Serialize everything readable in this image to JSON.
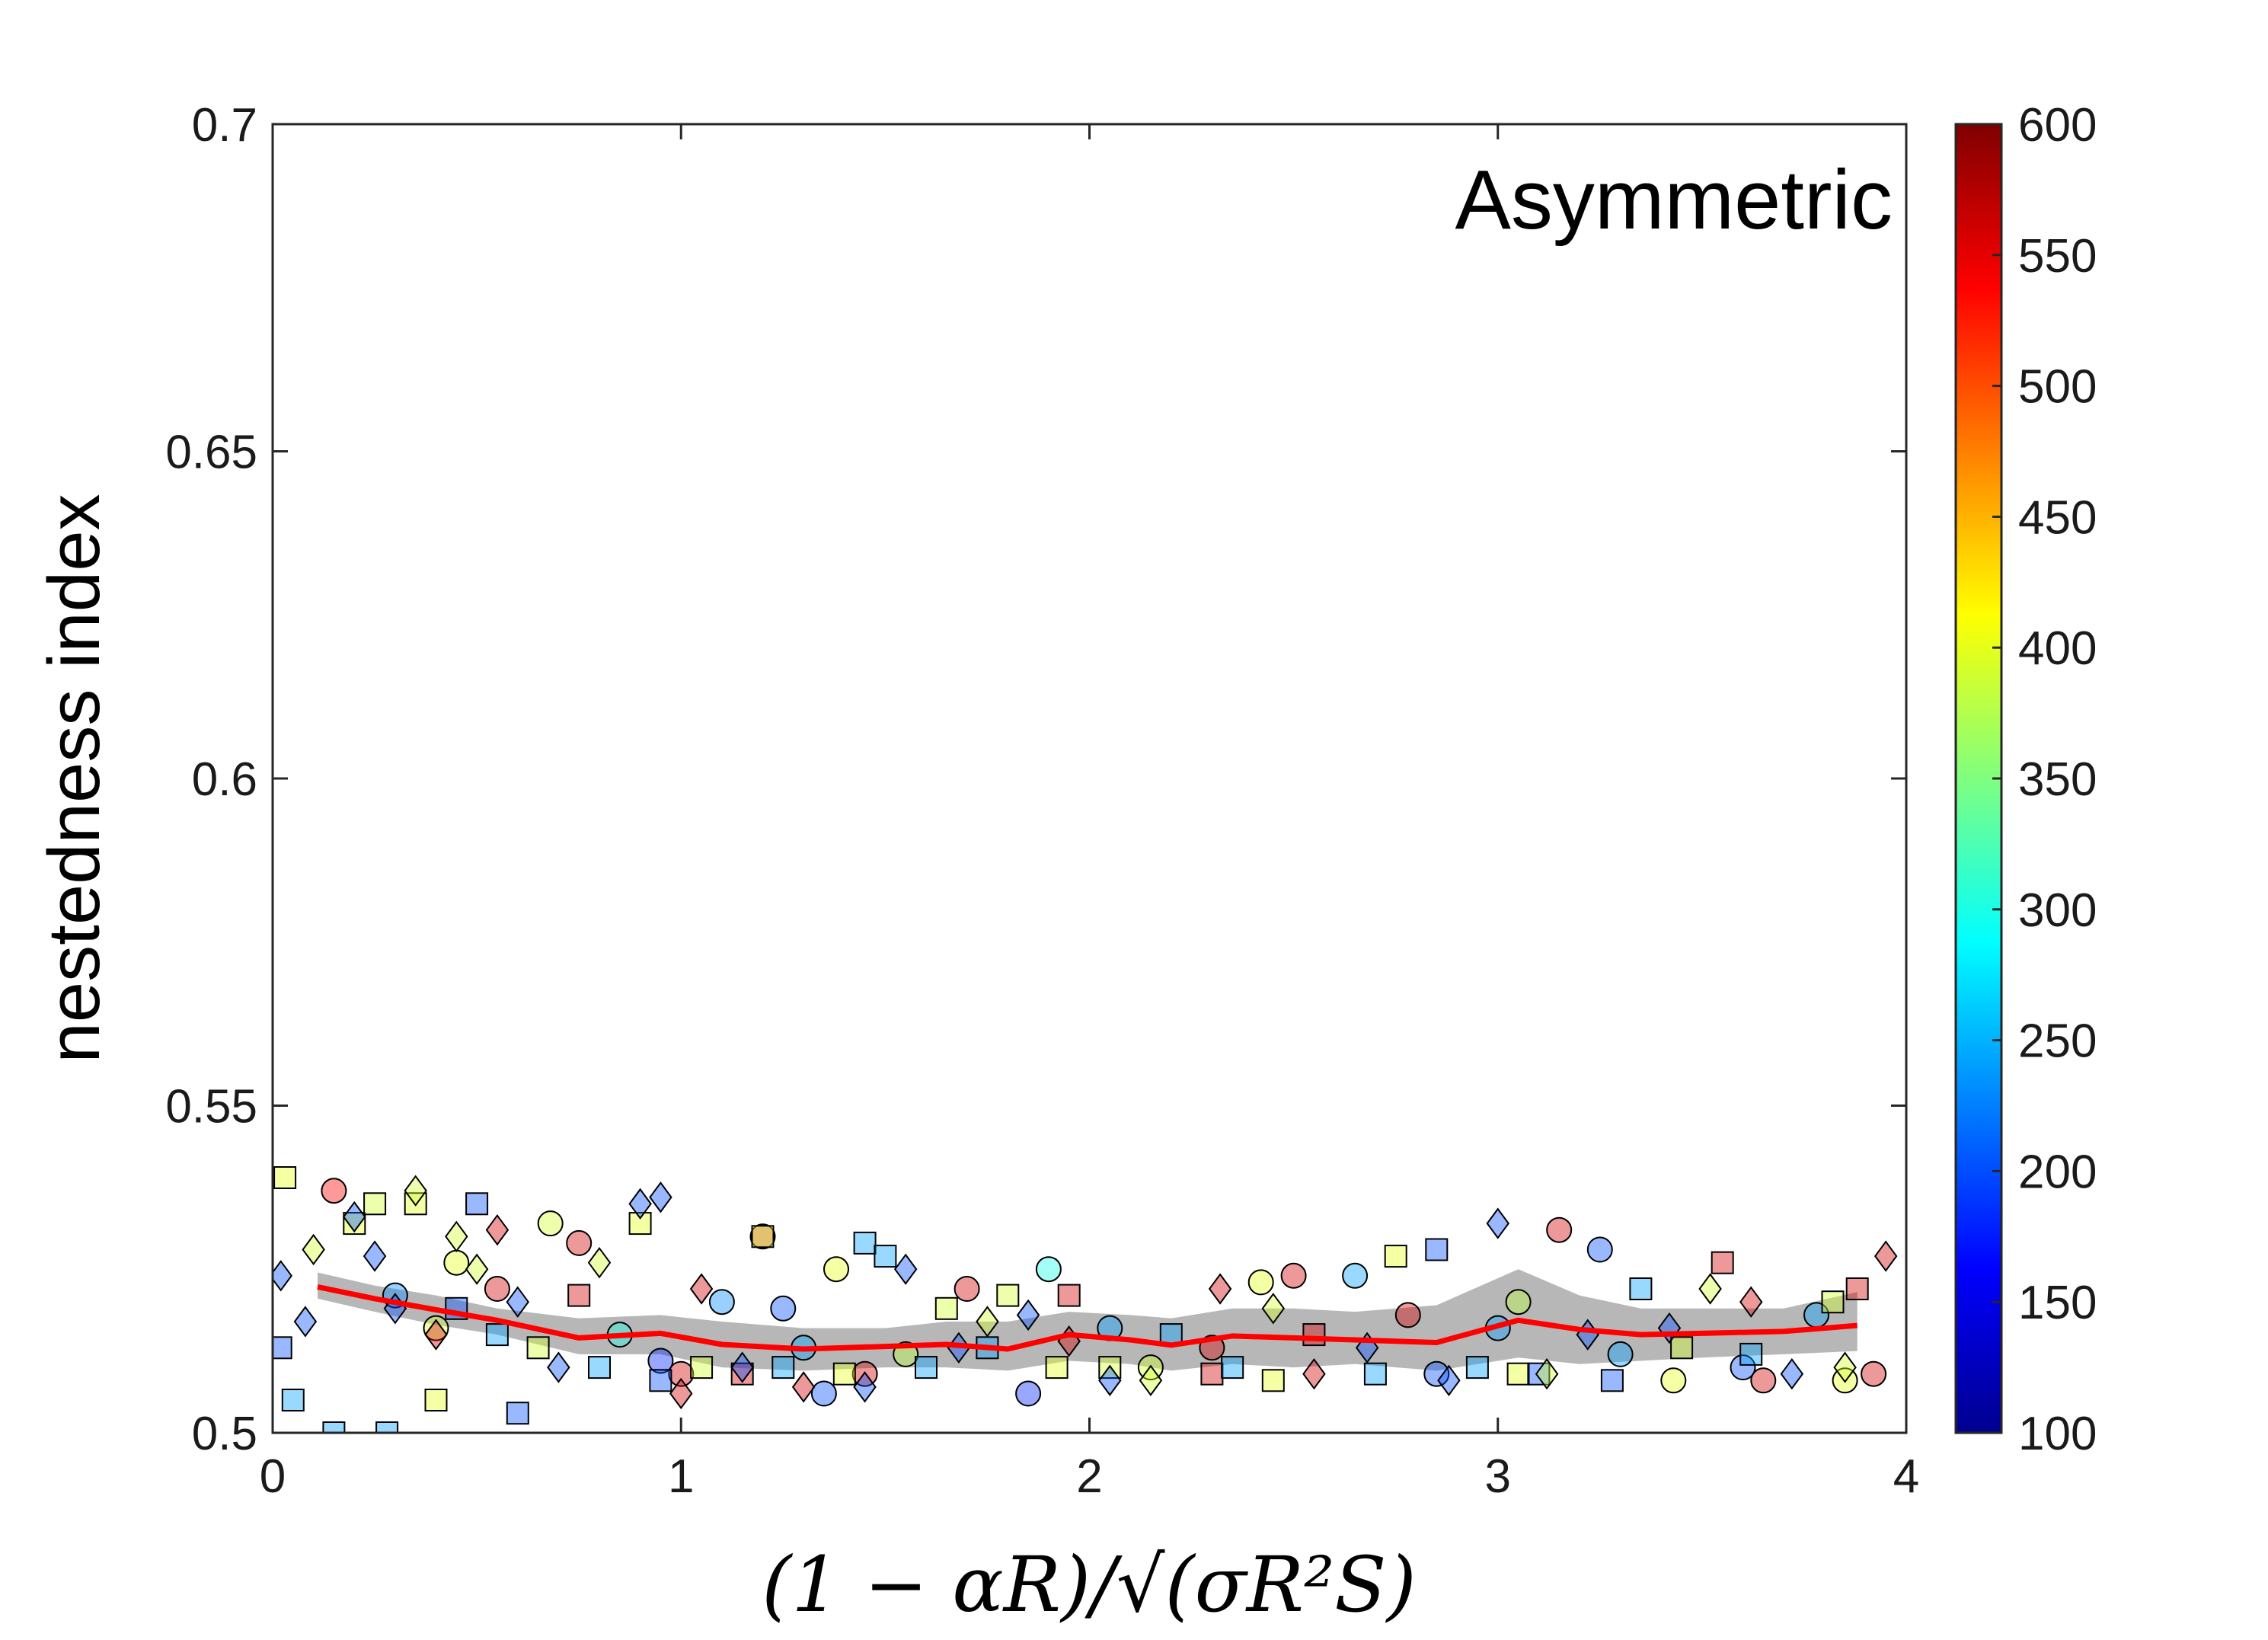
{
  "chart_data": {
    "type": "scatter",
    "title": "",
    "annotation": "Asymmetric",
    "xlabel": "(1 − αR)/√(σR²S)",
    "ylabel": "nestedness index",
    "xlim": [
      0,
      4
    ],
    "ylim": [
      0.5,
      0.7
    ],
    "xticks": [
      "0",
      "1",
      "2",
      "3",
      "4"
    ],
    "yticks": [
      "0.5",
      "0.55",
      "0.6",
      "0.65",
      "0.7"
    ],
    "colorbar": {
      "min": 100,
      "max": 600,
      "ticks": [
        "100",
        "150",
        "200",
        "250",
        "300",
        "350",
        "400",
        "450",
        "500",
        "550",
        "600"
      ],
      "colormap": "jet"
    },
    "colors": {
      "mean_line": "#ff0000",
      "band": "#aaaaaa",
      "axes": "#262626"
    },
    "mean_line": {
      "x": [
        0.11,
        0.25,
        0.4,
        0.55,
        0.75,
        0.95,
        1.1,
        1.3,
        1.5,
        1.65,
        1.8,
        1.95,
        2.1,
        2.2,
        2.35,
        2.5,
        2.65,
        2.85,
        3.05,
        3.2,
        3.35,
        3.5,
        3.7,
        3.88
      ],
      "y": [
        0.5223,
        0.5205,
        0.5188,
        0.5172,
        0.5145,
        0.5152,
        0.5135,
        0.5128,
        0.5132,
        0.5135,
        0.5128,
        0.515,
        0.5142,
        0.5134,
        0.5148,
        0.5145,
        0.5142,
        0.5138,
        0.5172,
        0.5158,
        0.515,
        0.5152,
        0.5155,
        0.5164
      ]
    },
    "band": {
      "x": [
        0.11,
        0.25,
        0.4,
        0.55,
        0.75,
        0.95,
        1.1,
        1.3,
        1.5,
        1.65,
        1.8,
        1.95,
        2.1,
        2.2,
        2.35,
        2.5,
        2.65,
        2.85,
        3.05,
        3.2,
        3.35,
        3.5,
        3.7,
        3.88
      ],
      "upper": [
        0.5245,
        0.5225,
        0.521,
        0.519,
        0.5175,
        0.518,
        0.517,
        0.516,
        0.516,
        0.517,
        0.517,
        0.5185,
        0.518,
        0.5175,
        0.519,
        0.519,
        0.5185,
        0.5195,
        0.525,
        0.521,
        0.519,
        0.519,
        0.519,
        0.5215
      ],
      "lower": [
        0.5205,
        0.5185,
        0.5165,
        0.515,
        0.512,
        0.512,
        0.51,
        0.5095,
        0.51,
        0.51,
        0.5095,
        0.511,
        0.5105,
        0.5095,
        0.5105,
        0.51,
        0.5105,
        0.5095,
        0.5115,
        0.5105,
        0.511,
        0.5115,
        0.512,
        0.5125
      ]
    },
    "series": [
      {
        "name": "circle",
        "marker": "circle",
        "points": [
          [
            0.15,
            0.537,
            540
          ],
          [
            0.3,
            0.521,
            230
          ],
          [
            0.4,
            0.516,
            390
          ],
          [
            0.45,
            0.526,
            400
          ],
          [
            0.55,
            0.522,
            560
          ],
          [
            0.68,
            0.532,
            390
          ],
          [
            0.75,
            0.529,
            560
          ],
          [
            0.85,
            0.515,
            300
          ],
          [
            0.95,
            0.511,
            180
          ],
          [
            1.0,
            0.509,
            560
          ],
          [
            1.1,
            0.52,
            230
          ],
          [
            1.2,
            0.53,
            560
          ],
          [
            1.25,
            0.519,
            200
          ],
          [
            1.3,
            0.513,
            240
          ],
          [
            1.35,
            0.506,
            200
          ],
          [
            1.38,
            0.525,
            400
          ],
          [
            1.45,
            0.509,
            560
          ],
          [
            1.55,
            0.512,
            380
          ],
          [
            1.7,
            0.522,
            560
          ],
          [
            1.85,
            0.506,
            180
          ],
          [
            1.9,
            0.525,
            300
          ],
          [
            2.05,
            0.516,
            240
          ],
          [
            2.15,
            0.51,
            390
          ],
          [
            2.3,
            0.513,
            560
          ],
          [
            2.42,
            0.523,
            400
          ],
          [
            2.5,
            0.524,
            560
          ],
          [
            2.65,
            0.524,
            240
          ],
          [
            2.78,
            0.518,
            560
          ],
          [
            2.85,
            0.509,
            200
          ],
          [
            3.0,
            0.516,
            240
          ],
          [
            3.05,
            0.52,
            380
          ],
          [
            3.15,
            0.531,
            560
          ],
          [
            3.25,
            0.528,
            200
          ],
          [
            3.3,
            0.512,
            240
          ],
          [
            3.43,
            0.508,
            400
          ],
          [
            3.6,
            0.51,
            200
          ],
          [
            3.65,
            0.508,
            560
          ],
          [
            3.78,
            0.518,
            240
          ],
          [
            3.85,
            0.508,
            400
          ],
          [
            3.92,
            0.509,
            560
          ]
        ]
      },
      {
        "name": "square",
        "marker": "square",
        "points": [
          [
            0.03,
            0.539,
            400
          ],
          [
            0.02,
            0.513,
            200
          ],
          [
            0.05,
            0.505,
            240
          ],
          [
            0.15,
            0.5,
            240
          ],
          [
            0.2,
            0.532,
            400
          ],
          [
            0.28,
            0.5,
            240
          ],
          [
            0.25,
            0.535,
            390
          ],
          [
            0.35,
            0.535,
            400
          ],
          [
            0.4,
            0.505,
            400
          ],
          [
            0.45,
            0.519,
            200
          ],
          [
            0.5,
            0.535,
            200
          ],
          [
            0.55,
            0.515,
            240
          ],
          [
            0.6,
            0.503,
            200
          ],
          [
            0.65,
            0.513,
            390
          ],
          [
            0.75,
            0.521,
            560
          ],
          [
            0.8,
            0.51,
            240
          ],
          [
            0.9,
            0.532,
            400
          ],
          [
            0.95,
            0.508,
            200
          ],
          [
            1.05,
            0.51,
            390
          ],
          [
            1.15,
            0.509,
            560
          ],
          [
            1.2,
            0.53,
            390
          ],
          [
            1.25,
            0.51,
            240
          ],
          [
            1.4,
            0.509,
            400
          ],
          [
            1.45,
            0.529,
            240
          ],
          [
            1.5,
            0.527,
            240
          ],
          [
            1.6,
            0.51,
            240
          ],
          [
            1.65,
            0.519,
            390
          ],
          [
            1.75,
            0.513,
            240
          ],
          [
            1.8,
            0.521,
            390
          ],
          [
            1.92,
            0.51,
            400
          ],
          [
            1.95,
            0.521,
            560
          ],
          [
            2.05,
            0.51,
            390
          ],
          [
            2.2,
            0.515,
            240
          ],
          [
            2.3,
            0.509,
            560
          ],
          [
            2.35,
            0.51,
            240
          ],
          [
            2.45,
            0.508,
            400
          ],
          [
            2.55,
            0.515,
            560
          ],
          [
            2.7,
            0.509,
            240
          ],
          [
            2.75,
            0.527,
            400
          ],
          [
            2.85,
            0.528,
            200
          ],
          [
            2.95,
            0.51,
            240
          ],
          [
            3.05,
            0.509,
            400
          ],
          [
            3.1,
            0.509,
            200
          ],
          [
            3.28,
            0.508,
            200
          ],
          [
            3.35,
            0.522,
            240
          ],
          [
            3.45,
            0.513,
            390
          ],
          [
            3.55,
            0.526,
            560
          ],
          [
            3.62,
            0.512,
            240
          ],
          [
            3.82,
            0.52,
            390
          ],
          [
            3.88,
            0.522,
            560
          ]
        ]
      },
      {
        "name": "diamond",
        "marker": "diamond",
        "points": [
          [
            0.02,
            0.524,
            200
          ],
          [
            0.1,
            0.528,
            390
          ],
          [
            0.08,
            0.517,
            200
          ],
          [
            0.2,
            0.533,
            200
          ],
          [
            0.25,
            0.527,
            200
          ],
          [
            0.3,
            0.519,
            200
          ],
          [
            0.35,
            0.537,
            390
          ],
          [
            0.4,
            0.515,
            560
          ],
          [
            0.45,
            0.53,
            390
          ],
          [
            0.5,
            0.525,
            390
          ],
          [
            0.55,
            0.531,
            560
          ],
          [
            0.6,
            0.52,
            200
          ],
          [
            0.7,
            0.51,
            200
          ],
          [
            0.8,
            0.526,
            390
          ],
          [
            0.9,
            0.535,
            200
          ],
          [
            0.95,
            0.536,
            200
          ],
          [
            1.0,
            0.506,
            560
          ],
          [
            1.05,
            0.522,
            560
          ],
          [
            1.15,
            0.51,
            200
          ],
          [
            1.3,
            0.507,
            560
          ],
          [
            1.45,
            0.507,
            200
          ],
          [
            1.55,
            0.525,
            200
          ],
          [
            1.68,
            0.513,
            200
          ],
          [
            1.75,
            0.517,
            390
          ],
          [
            1.85,
            0.518,
            200
          ],
          [
            1.95,
            0.514,
            560
          ],
          [
            2.05,
            0.508,
            200
          ],
          [
            2.15,
            0.508,
            390
          ],
          [
            2.32,
            0.522,
            560
          ],
          [
            2.45,
            0.519,
            390
          ],
          [
            2.55,
            0.509,
            560
          ],
          [
            2.68,
            0.513,
            200
          ],
          [
            2.88,
            0.508,
            200
          ],
          [
            3.0,
            0.532,
            200
          ],
          [
            3.12,
            0.509,
            390
          ],
          [
            3.22,
            0.515,
            200
          ],
          [
            3.42,
            0.516,
            200
          ],
          [
            3.52,
            0.522,
            390
          ],
          [
            3.62,
            0.52,
            560
          ],
          [
            3.72,
            0.509,
            200
          ],
          [
            3.85,
            0.51,
            390
          ],
          [
            3.95,
            0.527,
            560
          ]
        ]
      }
    ]
  }
}
